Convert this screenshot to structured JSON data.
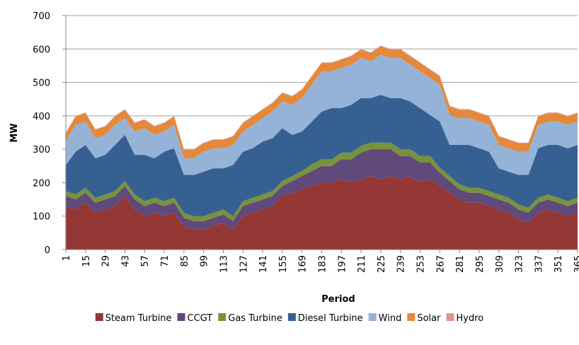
{
  "chart_data": {
    "type": "stacked-area",
    "x_label": "Period",
    "y_label": "MW",
    "x": [
      1,
      8,
      15,
      22,
      29,
      36,
      43,
      50,
      57,
      64,
      71,
      78,
      85,
      92,
      99,
      106,
      113,
      120,
      127,
      134,
      141,
      148,
      155,
      162,
      169,
      176,
      183,
      190,
      197,
      204,
      211,
      218,
      225,
      232,
      239,
      246,
      253,
      260,
      267,
      274,
      281,
      288,
      295,
      302,
      309,
      316,
      323,
      330,
      337,
      344,
      351,
      358,
      365
    ],
    "xlim": [
      1,
      365
    ],
    "xticks": [
      1,
      15,
      29,
      43,
      57,
      71,
      85,
      99,
      113,
      127,
      141,
      155,
      169,
      183,
      197,
      211,
      225,
      239,
      253,
      267,
      281,
      295,
      309,
      323,
      337,
      351,
      365
    ],
    "ylim": [
      0,
      700
    ],
    "yticks": [
      0,
      100,
      200,
      300,
      400,
      500,
      600,
      700
    ],
    "grid": true,
    "legend": "bottom",
    "series": [
      {
        "name": "Steam Turbine",
        "color": "#953735",
        "values": [
          130,
          120,
          140,
          110,
          120,
          130,
          160,
          120,
          100,
          110,
          100,
          110,
          70,
          60,
          60,
          70,
          80,
          60,
          100,
          110,
          120,
          130,
          160,
          170,
          180,
          190,
          200,
          200,
          210,
          200,
          210,
          220,
          210,
          220,
          210,
          220,
          200,
          210,
          190,
          170,
          150,
          140,
          140,
          130,
          120,
          110,
          90,
          80,
          110,
          120,
          110,
          100,
          110
        ]
      },
      {
        "name": "CCGT",
        "color": "#604a7b",
        "values": [
          30,
          30,
          30,
          30,
          30,
          30,
          30,
          30,
          30,
          30,
          30,
          30,
          25,
          25,
          25,
          25,
          25,
          25,
          30,
          30,
          30,
          30,
          30,
          35,
          40,
          45,
          50,
          50,
          60,
          70,
          80,
          80,
          90,
          80,
          70,
          60,
          60,
          50,
          40,
          35,
          30,
          30,
          30,
          30,
          30,
          30,
          30,
          30,
          30,
          30,
          30,
          30,
          30
        ]
      },
      {
        "name": "Gas Turbine",
        "color": "#77933c",
        "values": [
          15,
          15,
          15,
          15,
          15,
          15,
          15,
          15,
          15,
          15,
          15,
          15,
          15,
          15,
          15,
          15,
          15,
          15,
          15,
          15,
          15,
          15,
          15,
          15,
          15,
          20,
          20,
          20,
          20,
          20,
          20,
          20,
          20,
          20,
          20,
          20,
          20,
          20,
          15,
          15,
          15,
          15,
          15,
          15,
          15,
          15,
          15,
          15,
          15,
          15,
          15,
          15,
          15
        ]
      },
      {
        "name": "Diesel Turbine",
        "color": "#376092",
        "values": [
          78,
          128,
          128,
          118,
          118,
          138,
          138,
          118,
          138,
          118,
          148,
          148,
          113,
          123,
          133,
          133,
          123,
          153,
          148,
          148,
          158,
          158,
          158,
          123,
          118,
          128,
          143,
          153,
          133,
          143,
          143,
          133,
          143,
          133,
          153,
          143,
          143,
          123,
          138,
          93,
          118,
          128,
          118,
          118,
          78,
          78,
          88,
          98,
          148,
          148,
          158,
          158,
          158
        ]
      },
      {
        "name": "Wind",
        "color": "#95b3d7",
        "values": [
          70,
          80,
          70,
          60,
          60,
          60,
          50,
          70,
          80,
          70,
          60,
          70,
          50,
          50,
          60,
          60,
          60,
          60,
          60,
          70,
          70,
          80,
          80,
          90,
          100,
          110,
          120,
          110,
          120,
          120,
          120,
          110,
          120,
          120,
          120,
          110,
          110,
          110,
          110,
          90,
          80,
          80,
          80,
          80,
          70,
          70,
          70,
          70,
          70,
          70,
          70,
          70,
          70
        ]
      },
      {
        "name": "Solar",
        "color": "#e6883a",
        "values": [
          25,
          25,
          25,
          25,
          25,
          25,
          25,
          25,
          25,
          25,
          25,
          25,
          25,
          25,
          25,
          25,
          25,
          25,
          25,
          25,
          25,
          25,
          25,
          25,
          25,
          25,
          25,
          25,
          25,
          25,
          25,
          25,
          25,
          25,
          25,
          25,
          25,
          25,
          25,
          25,
          25,
          25,
          25,
          25,
          25,
          25,
          25,
          25,
          25,
          25,
          25,
          25,
          25
        ]
      },
      {
        "name": "Hydro",
        "color": "#d99694",
        "values": [
          2,
          2,
          2,
          2,
          2,
          2,
          2,
          2,
          2,
          2,
          2,
          2,
          2,
          2,
          2,
          2,
          2,
          2,
          2,
          2,
          2,
          2,
          2,
          2,
          2,
          2,
          2,
          2,
          2,
          2,
          2,
          2,
          2,
          2,
          2,
          2,
          2,
          2,
          2,
          2,
          2,
          2,
          2,
          2,
          2,
          2,
          2,
          2,
          2,
          2,
          2,
          2,
          2
        ]
      }
    ]
  }
}
